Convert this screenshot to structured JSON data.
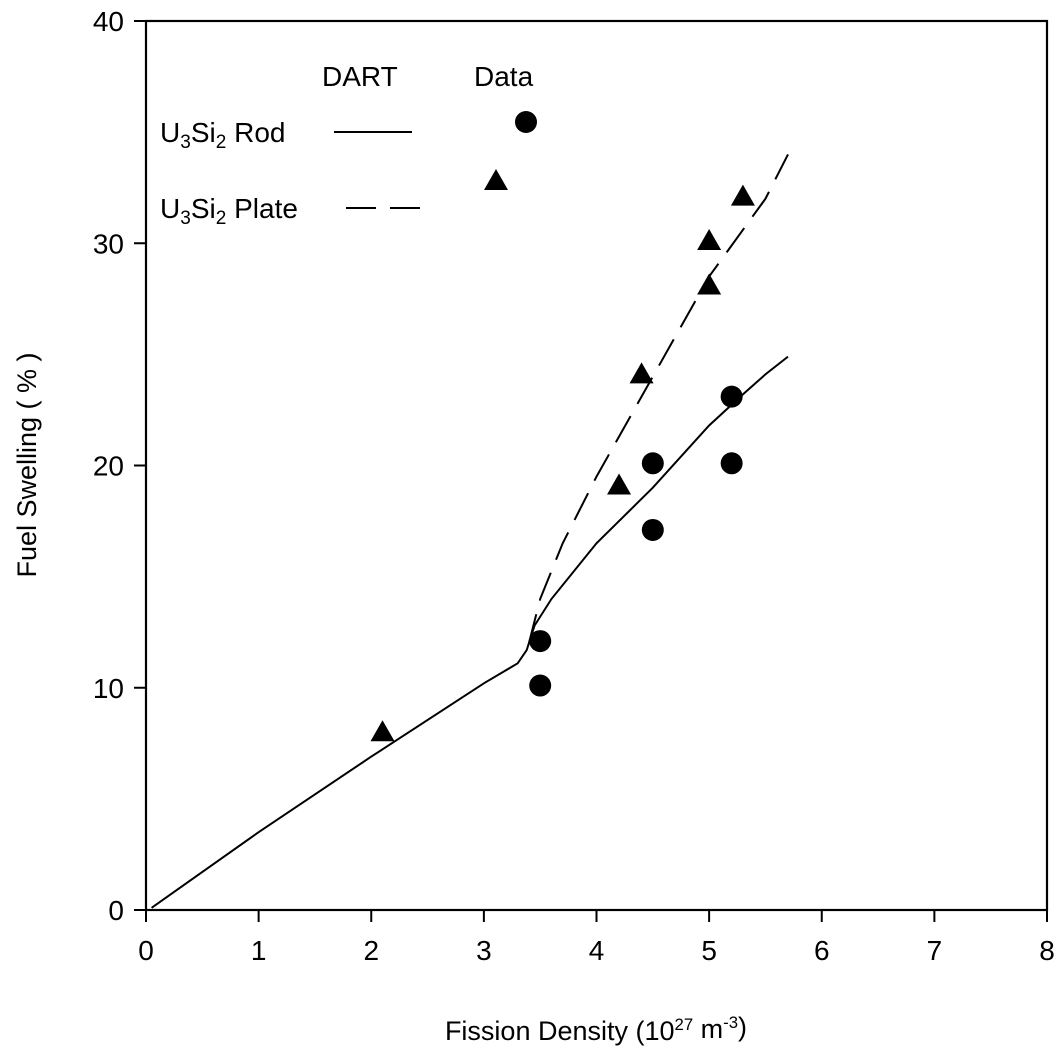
{
  "chart_data": {
    "type": "scatter",
    "title": "",
    "xlabel": "Fission Density (10^27 m^-3)",
    "ylabel": "Fuel Swelling ( % )",
    "xlim": [
      0,
      8
    ],
    "ylim": [
      0,
      40
    ],
    "xticks": [
      0,
      1,
      2,
      3,
      4,
      5,
      6,
      7,
      8
    ],
    "yticks": [
      0,
      10,
      20,
      30,
      40
    ],
    "grid": false,
    "legend": {
      "position": "top-left",
      "header_model": "DART",
      "header_data": "Data",
      "entries": [
        {
          "label": "U3Si2 Rod",
          "line_style": "solid",
          "marker": "circle"
        },
        {
          "label": "U3Si2 Plate",
          "line_style": "dashed",
          "marker": "triangle"
        }
      ]
    },
    "series": [
      {
        "name": "U3Si2 Rod",
        "kind": "model",
        "line_style": "solid",
        "points": [
          [
            0.05,
            0.1
          ],
          [
            1,
            3.5
          ],
          [
            2,
            6.9
          ],
          [
            3,
            10.2
          ],
          [
            3.3,
            11.1
          ],
          [
            3.38,
            11.7
          ],
          [
            3.45,
            12.8
          ],
          [
            3.6,
            14.0
          ],
          [
            4.0,
            16.5
          ],
          [
            4.5,
            19.0
          ],
          [
            5.0,
            21.8
          ],
          [
            5.3,
            23.2
          ],
          [
            5.5,
            24.1
          ],
          [
            5.7,
            24.9
          ]
        ]
      },
      {
        "name": "U3Si2 Plate",
        "kind": "model",
        "line_style": "dashed",
        "points": [
          [
            3.4,
            12.0
          ],
          [
            3.5,
            14.0
          ],
          [
            3.7,
            16.5
          ],
          [
            4.0,
            19.5
          ],
          [
            4.5,
            24.0
          ],
          [
            5.0,
            28.5
          ],
          [
            5.5,
            32.0
          ],
          [
            5.7,
            34.0
          ]
        ]
      },
      {
        "name": "U3Si2 Rod",
        "kind": "data",
        "marker": "circle",
        "points": [
          [
            3.5,
            12.1
          ],
          [
            3.5,
            10.1
          ],
          [
            4.5,
            20.1
          ],
          [
            4.5,
            17.1
          ],
          [
            5.2,
            23.1
          ],
          [
            5.2,
            20.1
          ]
        ]
      },
      {
        "name": "U3Si2 Plate",
        "kind": "data",
        "marker": "triangle",
        "points": [
          [
            2.1,
            8.0
          ],
          [
            4.2,
            19.1
          ],
          [
            4.4,
            24.1
          ],
          [
            5.0,
            28.1
          ],
          [
            5.0,
            30.1
          ],
          [
            5.3,
            32.1
          ]
        ]
      }
    ]
  }
}
